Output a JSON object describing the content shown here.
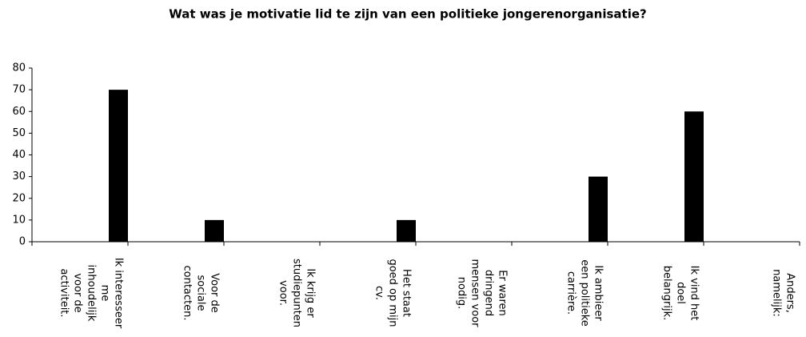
{
  "chart_data": {
    "type": "bar",
    "title": "Wat was je motivatie lid te zijn van een politieke jongerenorganisatie?",
    "categories": [
      [
        "Ik interesseer",
        "me",
        "inhoudelijk",
        "voor de",
        "activiteit."
      ],
      [
        "Voor de",
        "sociale",
        "contacten."
      ],
      [
        "Ik krijg er",
        "studiepunten",
        "voor."
      ],
      [
        "Het staat",
        "goed op mijn",
        "cv."
      ],
      [
        "Er waren",
        "dringend",
        "mensen voor",
        "nodig."
      ],
      [
        "Ik ambieer",
        "een politieke",
        "carrière."
      ],
      [
        "Ik vind het",
        "doel",
        "belangrijk."
      ],
      [
        "Anders,",
        "namelijk:"
      ]
    ],
    "values": [
      70,
      10,
      0,
      10,
      0,
      30,
      60,
      0
    ],
    "color": "#000000",
    "ylim": [
      0,
      80
    ],
    "yticks": [
      0,
      10,
      20,
      30,
      40,
      50,
      60,
      70,
      80
    ],
    "grid": false
  }
}
